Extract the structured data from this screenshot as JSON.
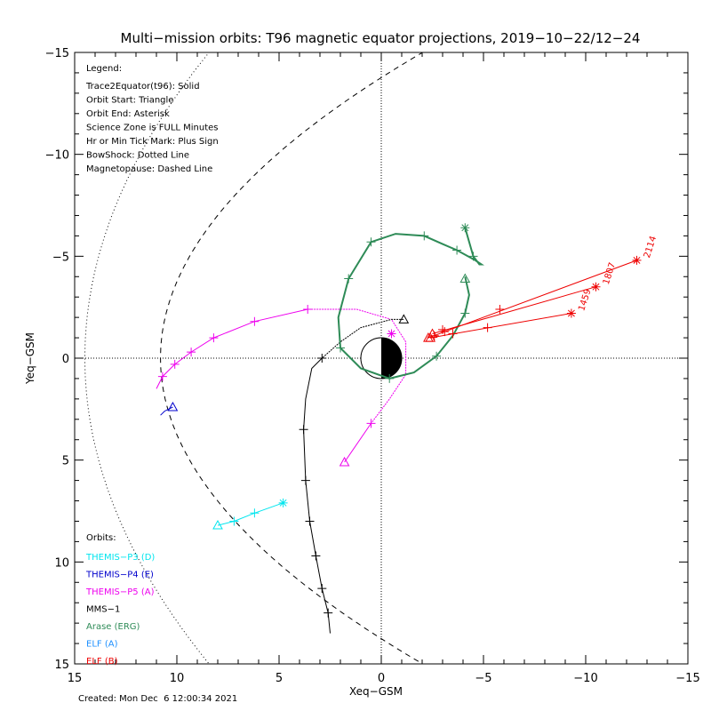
{
  "chart_data": {
    "type": "scatter",
    "title": "Multi−mission orbits: T96 magnetic equator projections, 2019−10−22/12−24",
    "xlabel": "Xeq−GSM",
    "ylabel": "Yeq−GSM",
    "xlim": [
      15,
      -15
    ],
    "ylim": [
      -15,
      15
    ],
    "x_ticks": [
      "15",
      "10",
      "5",
      "0",
      "−5",
      "−10",
      "−15"
    ],
    "y_ticks": [
      "−15",
      "−10",
      "−5",
      "0",
      "5",
      "10",
      "15"
    ],
    "x_tick_values": [
      15,
      10,
      5,
      0,
      -5,
      -10,
      -15
    ],
    "y_tick_values": [
      -15,
      -10,
      -5,
      0,
      5,
      10,
      15
    ],
    "created": "Created: Mon Dec  6 12:00:34 2021",
    "legend": {
      "heading": "Legend:",
      "items": [
        "Trace2Equator(t96): Solid",
        "Orbit Start: Triangle",
        "Orbit End: Asterisk",
        "Science Zone is FULL Minutes",
        "Hr or Min Tick Mark: Plus Sign",
        "BowShock: Dotted Line",
        "Magnetopause: Dashed Line"
      ]
    },
    "orbits_heading": "Orbits:",
    "colors": {
      "themis_p3": "#00e5ee",
      "themis_p4": "#0000cc",
      "themis_p5": "#ee00ee",
      "mms1": "#000000",
      "arase": "#2e8b57",
      "elf_a": "#1e90ff",
      "elf_b": "#ee0000"
    },
    "series": [
      {
        "name": "THEMIS−P3 (D)",
        "color": "#00e5ee",
        "x": [
          8.0,
          7.2,
          6.2,
          4.8
        ],
        "y": [
          8.2,
          8.0,
          7.6,
          7.1
        ],
        "ticks": [
          [
            7.2,
            8.0
          ],
          [
            6.2,
            7.6
          ]
        ],
        "start": [
          8.0,
          8.2
        ],
        "end": [
          4.8,
          7.1
        ]
      },
      {
        "name": "THEMIS−P4 (E)",
        "color": "#0000cc",
        "x": [
          10.2,
          10.6,
          10.8
        ],
        "y": [
          2.4,
          2.6,
          2.8
        ],
        "ticks": [],
        "start": [
          10.2,
          2.4
        ],
        "end": null
      },
      {
        "name": "THEMIS−P5 (A)",
        "color": "#ee00ee",
        "x": [
          11.0,
          10.7,
          10.1,
          9.3,
          8.2,
          6.2,
          3.6,
          1.2,
          -0.5,
          -1.2,
          -1.2,
          -0.4,
          0.5,
          1.8
        ],
        "y": [
          1.5,
          0.9,
          0.3,
          -0.3,
          -1.0,
          -1.8,
          -2.4,
          -2.4,
          -1.9,
          -0.8,
          0.8,
          2.0,
          3.2,
          5.1
        ],
        "ticks": [
          [
            10.7,
            0.9
          ],
          [
            10.1,
            0.3
          ],
          [
            9.3,
            -0.3
          ],
          [
            8.2,
            -1.0
          ],
          [
            6.2,
            -1.8
          ],
          [
            3.6,
            -2.4
          ],
          [
            0.5,
            3.2
          ]
        ],
        "start": [
          1.8,
          5.1
        ],
        "end": [
          -0.5,
          -1.2
        ],
        "dotted_x": [
          3.6,
          1.2,
          -0.5,
          -1.2,
          -1.2,
          -0.4,
          0.5
        ],
        "dotted_y": [
          -2.4,
          -2.4,
          -1.9,
          -0.8,
          0.8,
          2.0,
          3.2
        ]
      },
      {
        "name": "MMS−1",
        "color": "#000000",
        "x": [
          2.5,
          2.6,
          2.9,
          3.2,
          3.5,
          3.7,
          3.8,
          3.7,
          3.4,
          2.9,
          2.0,
          1.0,
          -0.5,
          -1.1
        ],
        "y": [
          13.5,
          12.5,
          11.3,
          9.7,
          8.0,
          6.0,
          3.5,
          2.0,
          0.5,
          0.0,
          -0.8,
          -1.5,
          -1.9,
          -1.9
        ],
        "ticks": [
          [
            2.6,
            12.5
          ],
          [
            2.9,
            11.3
          ],
          [
            3.2,
            9.7
          ],
          [
            3.5,
            8.0
          ],
          [
            3.7,
            6.0
          ],
          [
            3.8,
            3.5
          ],
          [
            2.9,
            0.0
          ]
        ],
        "start": [
          -1.1,
          -1.9
        ],
        "end": null,
        "dotted_x": [
          2.9,
          2.0,
          1.0,
          -0.5,
          -1.1
        ],
        "dotted_y": [
          0.0,
          -0.8,
          -1.5,
          -1.9,
          -1.9
        ]
      },
      {
        "name": "Arase (ERG)",
        "color": "#2e8b57",
        "x": [
          -4.1,
          -4.3,
          -4.1,
          -3.5,
          -2.7,
          -1.6,
          -0.4,
          1.0,
          2.0,
          2.1,
          1.6,
          0.5,
          -0.7,
          -2.1,
          -3.0,
          -3.7,
          -4.6,
          -4.9,
          -4.8,
          -4.5,
          -4.1
        ],
        "y": [
          -4.0,
          -3.1,
          -2.2,
          -1.1,
          -0.1,
          0.7,
          1.0,
          0.5,
          -0.5,
          -2.0,
          -3.9,
          -5.7,
          -6.1,
          -6.0,
          -5.6,
          -5.3,
          -4.8,
          -4.6,
          -4.6,
          -5.0,
          -6.4
        ],
        "ticks": [
          [
            -4.1,
            -2.2
          ],
          [
            -2.7,
            -0.1
          ],
          [
            -0.4,
            1.0
          ],
          [
            2.0,
            -0.5
          ],
          [
            1.6,
            -3.9
          ],
          [
            0.5,
            -5.7
          ],
          [
            -2.1,
            -6.0
          ],
          [
            -3.7,
            -5.3
          ],
          [
            -4.5,
            -5.0
          ]
        ],
        "start": [
          -4.1,
          -3.9
        ],
        "end": [
          -4.1,
          -6.4
        ]
      },
      {
        "name": "ELF (A)",
        "color": "#1e90ff",
        "x": [],
        "y": [],
        "ticks": [],
        "start": null,
        "end": null
      },
      {
        "name": "ELF (B)",
        "color": "#ee0000",
        "x": [
          -2.3,
          -12.5
        ],
        "y": [
          -1.0,
          -4.8
        ],
        "ticks": [
          [
            -2.6,
            -1.1
          ],
          [
            -3.1,
            -1.3
          ]
        ],
        "start": [
          -2.3,
          -1.0
        ],
        "end": [
          -12.5,
          -4.8
        ],
        "label": "2114"
      },
      {
        "name": "ELF (B)",
        "color": "#ee0000",
        "x": [
          -2.5,
          -10.5
        ],
        "y": [
          -1.2,
          -3.5
        ],
        "ticks": [
          [
            -3.0,
            -1.4
          ],
          [
            -5.8,
            -2.4
          ]
        ],
        "start": [
          -2.5,
          -1.2
        ],
        "end": [
          -10.5,
          -3.5
        ],
        "label": "1807"
      },
      {
        "name": "ELF (B)",
        "color": "#ee0000",
        "x": [
          -2.4,
          -9.3
        ],
        "y": [
          -1.0,
          -2.2
        ],
        "ticks": [
          [
            -3.5,
            -1.2
          ],
          [
            -5.2,
            -1.5
          ]
        ],
        "start": [
          -2.4,
          -1.0
        ],
        "end": [
          -9.3,
          -2.2
        ],
        "label": "1459"
      }
    ]
  }
}
